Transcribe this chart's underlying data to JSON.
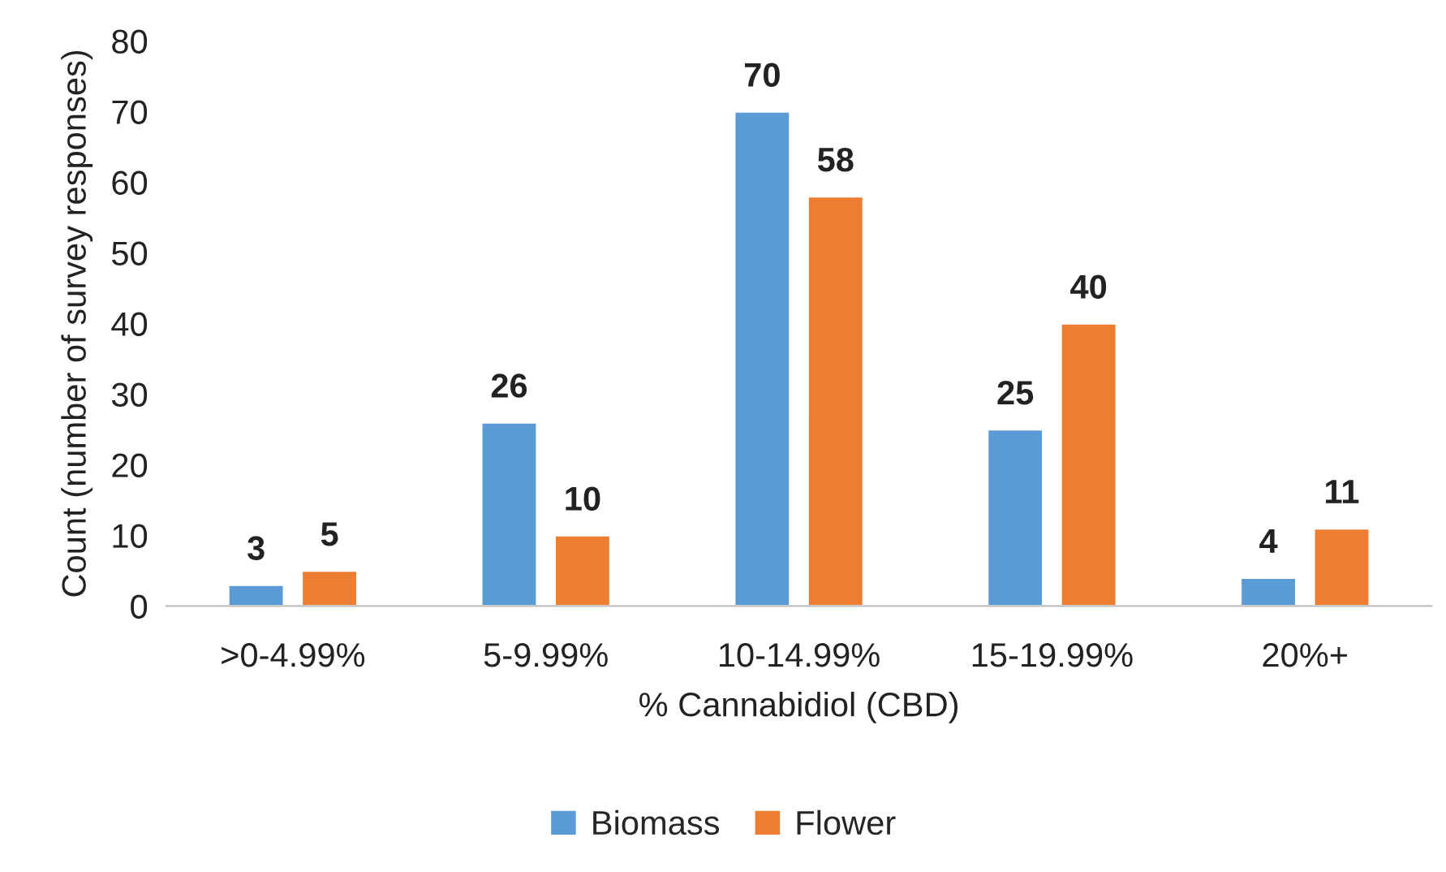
{
  "chart_data": {
    "type": "bar",
    "xlabel": "% Cannabidiol (CBD)",
    "ylabel": "Count (number of survey responses)",
    "categories": [
      ">0-4.99%",
      "5-9.99%",
      "10-14.99%",
      "15-19.99%",
      "20%+"
    ],
    "series": [
      {
        "name": "Biomass",
        "color": "#5b9bd5",
        "values": [
          3,
          26,
          70,
          25,
          4
        ]
      },
      {
        "name": "Flower",
        "color": "#ed7d31",
        "values": [
          5,
          10,
          58,
          40,
          11
        ]
      }
    ],
    "ylim": [
      0,
      80
    ],
    "yticks": [
      0,
      10,
      20,
      30,
      40,
      50,
      60,
      70,
      80
    ],
    "data_labels": true,
    "grid": false,
    "legend": "bottom"
  }
}
